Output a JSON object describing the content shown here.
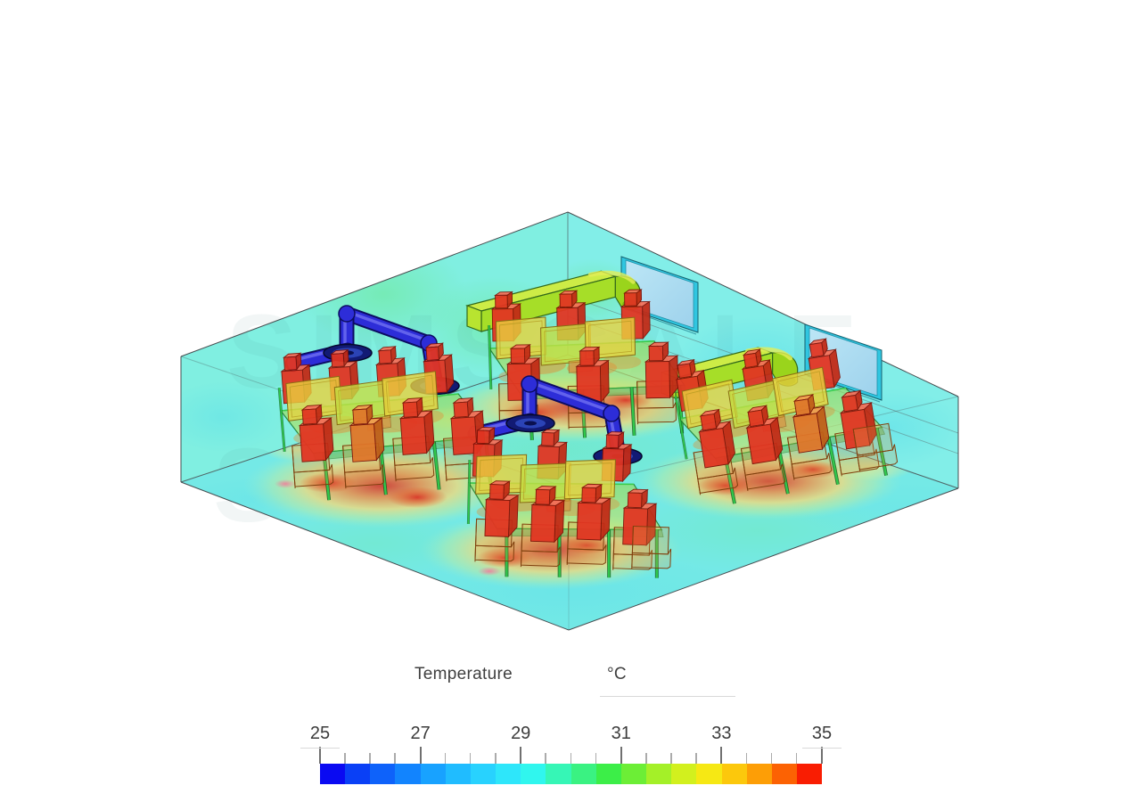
{
  "legend": {
    "title": "Temperature",
    "unit": "°C",
    "tick_labels": [
      "25",
      "27",
      "29",
      "31",
      "33",
      "35"
    ],
    "min": "25",
    "max": "35",
    "segments": 20,
    "colors": [
      "#0a0af2",
      "#0a40f6",
      "#0e62fa",
      "#1284fe",
      "#18a2ff",
      "#20bcff",
      "#28d2fe",
      "#2ee6fa",
      "#30f6ee",
      "#36f6b6",
      "#3af282",
      "#3cee48",
      "#6cee36",
      "#a4f028",
      "#d2f01e",
      "#f6e814",
      "#fcc80c",
      "#fd9e06",
      "#fc6203",
      "#f91d02"
    ],
    "text_color": "#3c3c3c",
    "tick_major_color": "#707070",
    "tick_minor_color": "#ababab",
    "underline_color": "#d9d9d9"
  },
  "scene": {
    "watermark": "SIMSCALE",
    "counts": {
      "desk_groups": 4,
      "windows": 2,
      "supply_vents": 2,
      "extract_duct_assemblies": 2,
      "ceiling_diffusers": 4
    },
    "palette": {
      "wall_left": "#80efe1",
      "wall_right": "#82eee8",
      "floor": "#74e9e6",
      "outline": "#474d50",
      "hot_red": "#d93226",
      "hot_orange": "#ef8a46",
      "hot_yellow": "#f2d97c",
      "hot_pink": "#f27a9a",
      "figure_front": "#e23522",
      "figure_top": "#f4705a",
      "figure_side": "#c22a16",
      "figure_outline": "#7c1006",
      "figure_orange_front": "#e0762a",
      "figure_orange_top": "#f0a050",
      "figure_orange_side": "#c05e18",
      "table_edge": "#1d7a28",
      "table_bright_edge": "#3bd24d",
      "leg_green": "#2fc94b",
      "leg_dark": "#0f5c1d",
      "panel_yellow": "#e8d23e",
      "panel_green": "#c6de44",
      "panel_edge": "#8a6e14",
      "pipe_blue": "#2d2dd8",
      "pipe_dark": "#0c0c62",
      "pipe_light": "#7070f2",
      "diffuser_dark": "#121a74",
      "diffuser_mid": "#2b43b6",
      "duct_side": "#a6de28",
      "duct_top": "#cdec46",
      "duct_cap": "#b8e430",
      "duct_nozzle": "#9ad41c",
      "duct_edge": "#33691a",
      "duct_tip": "#e2ee58",
      "window_frame": "#30c6e0",
      "window_edge": "#15606e",
      "chair_fill": "#e09a48",
      "chair_edge": "#80400e"
    }
  }
}
